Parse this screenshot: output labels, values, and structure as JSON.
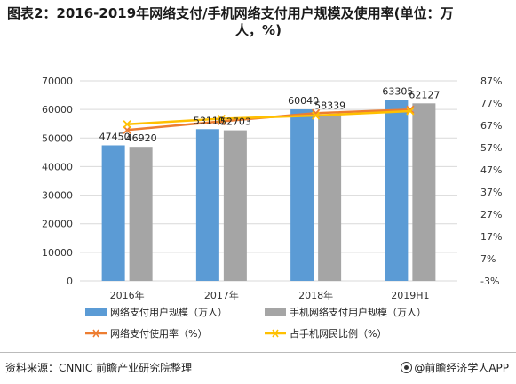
{
  "title_line1": "图表2：2016-2019年网络支付/手机网络支付用户规模及使用率(单位：万",
  "title_line2": "人，%)",
  "source": "资料来源：CNNIC 前瞻产业研究院整理",
  "credit": "@前瞻经济学人APP",
  "colors": {
    "bar1": "#5B9BD5",
    "bar2": "#A5A5A5",
    "line1": "#ED7D31",
    "line2": "#FFC000",
    "grid": "#d9d9d9",
    "axis_text": "#333333"
  },
  "chart_data": {
    "type": "bar",
    "categories": [
      "2016年",
      "2017年",
      "2018年",
      "2019H1"
    ],
    "left_axis": {
      "min": 0,
      "max": 70000,
      "step": 10000,
      "ticks": [
        "0",
        "10000",
        "20000",
        "30000",
        "40000",
        "50000",
        "60000",
        "70000"
      ]
    },
    "right_axis": {
      "min": -3,
      "max": 87,
      "step": 10,
      "ticks": [
        "-3%",
        "7%",
        "17%",
        "27%",
        "37%",
        "47%",
        "57%",
        "67%",
        "77%",
        "87%"
      ]
    },
    "series": [
      {
        "name": "网络支付用户规模（万人）",
        "kind": "bar",
        "axis": "left",
        "values": [
          47450,
          53110,
          60040,
          63305
        ],
        "labels": [
          "47450",
          "53110",
          "60040",
          "63305"
        ]
      },
      {
        "name": "手机网络支付用户规模（万人）",
        "kind": "bar",
        "axis": "left",
        "values": [
          46920,
          52703,
          58339,
          62127
        ],
        "labels": [
          "46920",
          "52703",
          "58339",
          "62127"
        ]
      },
      {
        "name": "网络支付使用率（%）",
        "kind": "line",
        "axis": "right",
        "values": [
          64.9,
          68.8,
          72.5,
          74.1
        ]
      },
      {
        "name": "占手机网民比例（%）",
        "kind": "line",
        "axis": "right",
        "values": [
          67.5,
          70.0,
          71.4,
          73.4
        ]
      }
    ],
    "legend_position": "bottom",
    "grid": true
  }
}
